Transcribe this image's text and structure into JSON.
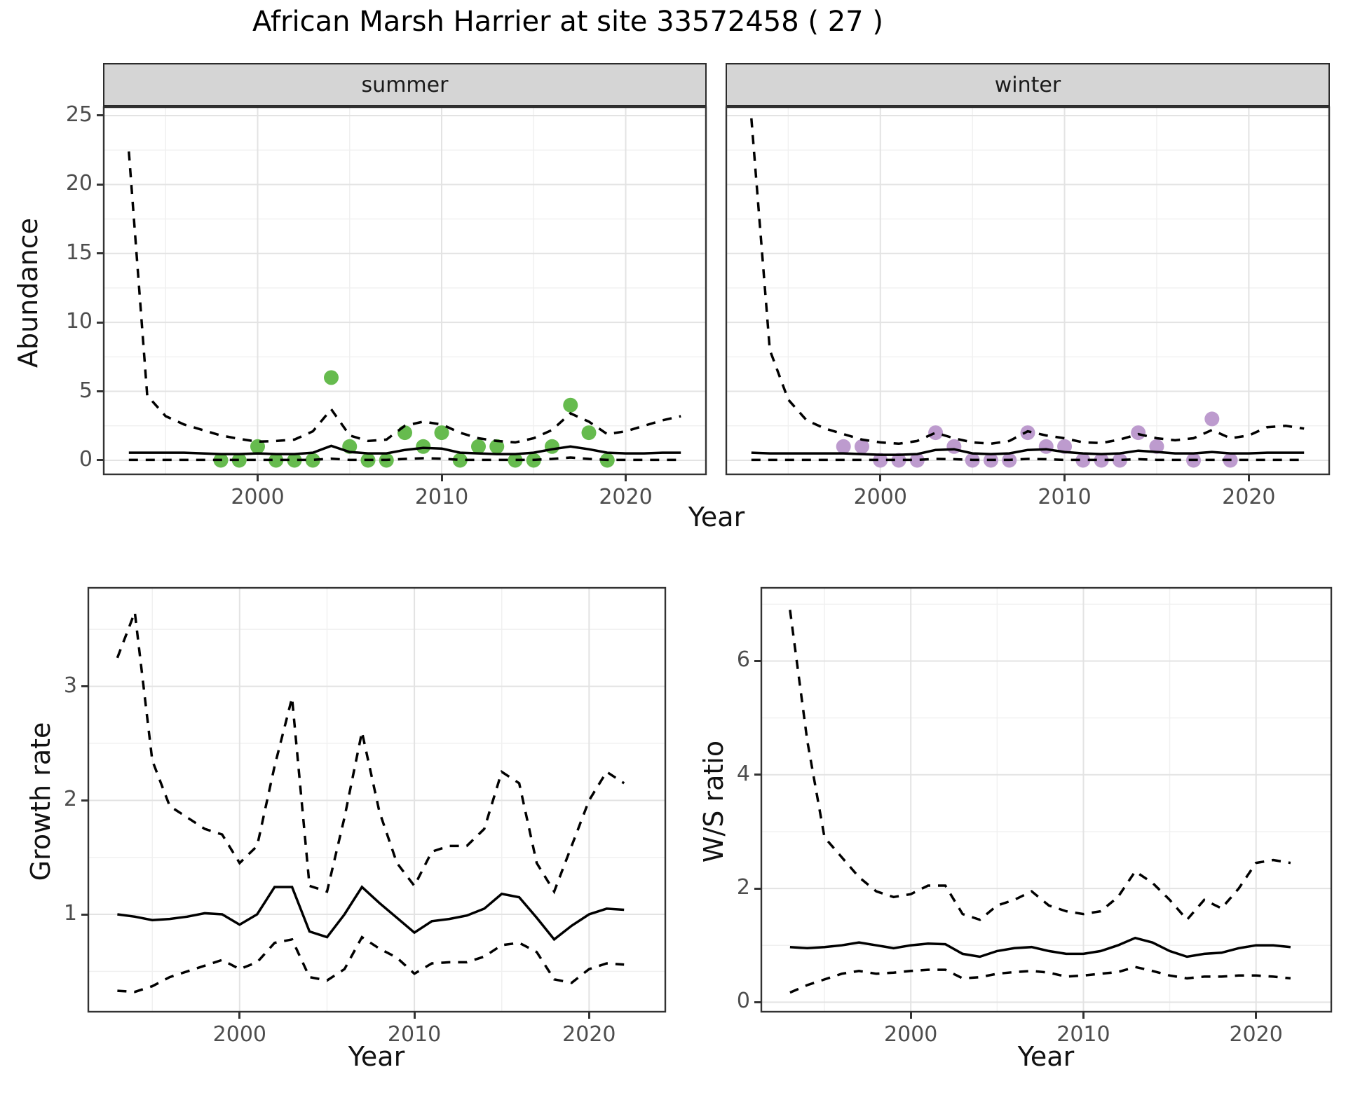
{
  "title": "African Marsh Harrier at site 33572458 ( 27 )",
  "facets": {
    "summer": "summer",
    "winter": "winter"
  },
  "axis_labels": {
    "abundance": "Abundance",
    "year": "Year",
    "growth_rate": "Growth rate",
    "ws_ratio": "W/S ratio"
  },
  "colors": {
    "summer_points": "#66bb4e",
    "winter_points": "#bd9bce",
    "line": "#000000",
    "grid_major": "#e3e3e3",
    "grid_minor": "#f0f0f0",
    "panel_border": "#333333",
    "strip_fill": "#d5d5d5",
    "tick_text": "#4d4d4d"
  },
  "chart_data": [
    {
      "id": "abundance_summer",
      "type": "line",
      "facet": "summer",
      "ylabel": "Abundance",
      "xlabel": "Year",
      "xlim": [
        1991.6,
        2024.4
      ],
      "ylim": [
        -1.07,
        25.66
      ],
      "xticks": [
        2000,
        2010,
        2020
      ],
      "yticks": [
        0,
        5,
        10,
        15,
        20,
        25
      ],
      "y_axis": true,
      "x": [
        1993,
        1994,
        1995,
        1996,
        1997,
        1998,
        1999,
        2000,
        2001,
        2002,
        2003,
        2004,
        2005,
        2006,
        2007,
        2008,
        2009,
        2010,
        2011,
        2012,
        2013,
        2014,
        2015,
        2016,
        2017,
        2018,
        2019,
        2020,
        2021,
        2022,
        2023
      ],
      "series": [
        {
          "name": "upper_ci",
          "style": "dashed",
          "values": [
            22.4,
            4.7,
            3.2,
            2.6,
            2.2,
            1.8,
            1.55,
            1.35,
            1.4,
            1.5,
            2.1,
            3.7,
            1.8,
            1.4,
            1.5,
            2.5,
            2.8,
            2.6,
            2.0,
            1.6,
            1.4,
            1.3,
            1.6,
            2.2,
            3.4,
            2.8,
            1.9,
            2.1,
            2.5,
            2.9,
            3.2
          ]
        },
        {
          "name": "median",
          "style": "solid",
          "values": [
            0.55,
            0.55,
            0.55,
            0.55,
            0.5,
            0.45,
            0.45,
            0.5,
            0.45,
            0.45,
            0.55,
            1.05,
            0.6,
            0.5,
            0.5,
            0.75,
            0.9,
            0.85,
            0.55,
            0.5,
            0.45,
            0.45,
            0.55,
            0.8,
            1.0,
            0.8,
            0.55,
            0.5,
            0.5,
            0.55,
            0.55
          ]
        },
        {
          "name": "lower_ci",
          "style": "dashed",
          "values": [
            0.03,
            0.03,
            0.03,
            0.03,
            0.03,
            0.03,
            0.03,
            0.03,
            0.03,
            0.03,
            0.03,
            0.12,
            0.03,
            0.03,
            0.03,
            0.1,
            0.15,
            0.12,
            0.03,
            0.03,
            0.03,
            0.03,
            0.03,
            0.1,
            0.2,
            0.1,
            0.03,
            0.03,
            0.03,
            0.03,
            0.03
          ]
        }
      ],
      "points": {
        "color_key": "summer_points",
        "x": [
          1998,
          1999,
          2000,
          2001,
          2002,
          2003,
          2004,
          2005,
          2006,
          2007,
          2008,
          2009,
          2010,
          2011,
          2012,
          2013,
          2014,
          2015,
          2016,
          2017,
          2018,
          2019
        ],
        "y": [
          0,
          0,
          1,
          0,
          0,
          0,
          6,
          1,
          0,
          0,
          2,
          1,
          2,
          0,
          1,
          1,
          0,
          0,
          1,
          4,
          2,
          0
        ]
      }
    },
    {
      "id": "abundance_winter",
      "type": "line",
      "facet": "winter",
      "ylabel": "Abundance",
      "xlabel": "Year",
      "xlim": [
        1991.6,
        2024.4
      ],
      "ylim": [
        -1.07,
        25.66
      ],
      "xticks": [
        2000,
        2010,
        2020
      ],
      "yticks": [
        0,
        5,
        10,
        15,
        20,
        25
      ],
      "y_axis": false,
      "x": [
        1993,
        1994,
        1995,
        1996,
        1997,
        1998,
        1999,
        2000,
        2001,
        2002,
        2003,
        2004,
        2005,
        2006,
        2007,
        2008,
        2009,
        2010,
        2011,
        2012,
        2013,
        2014,
        2015,
        2016,
        2017,
        2018,
        2019,
        2020,
        2021,
        2022,
        2023
      ],
      "series": [
        {
          "name": "upper_ci",
          "style": "dashed",
          "values": [
            24.8,
            8.0,
            4.4,
            2.9,
            2.3,
            1.9,
            1.5,
            1.3,
            1.2,
            1.4,
            2.0,
            1.6,
            1.3,
            1.2,
            1.4,
            2.1,
            1.8,
            1.6,
            1.3,
            1.25,
            1.5,
            1.9,
            1.6,
            1.45,
            1.6,
            2.2,
            1.6,
            1.8,
            2.4,
            2.5,
            2.3
          ]
        },
        {
          "name": "median",
          "style": "solid",
          "values": [
            0.55,
            0.5,
            0.5,
            0.5,
            0.5,
            0.5,
            0.45,
            0.4,
            0.4,
            0.45,
            0.75,
            0.8,
            0.5,
            0.45,
            0.5,
            0.75,
            0.8,
            0.6,
            0.5,
            0.45,
            0.5,
            0.7,
            0.6,
            0.5,
            0.5,
            0.6,
            0.5,
            0.5,
            0.55,
            0.55,
            0.55
          ]
        },
        {
          "name": "lower_ci",
          "style": "dashed",
          "values": [
            0.03,
            0.03,
            0.03,
            0.03,
            0.03,
            0.03,
            0.03,
            0.03,
            0.03,
            0.03,
            0.1,
            0.08,
            0.03,
            0.03,
            0.03,
            0.1,
            0.08,
            0.03,
            0.03,
            0.03,
            0.03,
            0.08,
            0.03,
            0.03,
            0.03,
            0.03,
            0.03,
            0.03,
            0.03,
            0.03,
            0.03
          ]
        }
      ],
      "points": {
        "color_key": "winter_points",
        "x": [
          1998,
          1999,
          2000,
          2001,
          2002,
          2003,
          2004,
          2005,
          2006,
          2007,
          2008,
          2009,
          2010,
          2011,
          2012,
          2013,
          2014,
          2015,
          2017,
          2018,
          2019
        ],
        "y": [
          1,
          1,
          0,
          0,
          0,
          2,
          1,
          0,
          0,
          0,
          2,
          1,
          1,
          0,
          0,
          0,
          2,
          1,
          0,
          3,
          0
        ]
      }
    },
    {
      "id": "growth_rate",
      "type": "line",
      "facet": null,
      "ylabel": "Growth rate",
      "xlabel": "Year",
      "xlim": [
        1991.3,
        2024.4
      ],
      "ylim": [
        0.14,
        3.87
      ],
      "xticks": [
        2000,
        2010,
        2020
      ],
      "yticks": [
        1,
        2,
        3
      ],
      "y_axis": true,
      "x": [
        1993,
        1994,
        1995,
        1996,
        1997,
        1998,
        1999,
        2000,
        2001,
        2002,
        2003,
        2004,
        2005,
        2006,
        2007,
        2008,
        2009,
        2010,
        2011,
        2012,
        2013,
        2014,
        2015,
        2016,
        2017,
        2018,
        2019,
        2020,
        2021,
        2022
      ],
      "series": [
        {
          "name": "upper_ci",
          "style": "dashed",
          "values": [
            3.25,
            3.65,
            2.35,
            1.95,
            1.85,
            1.75,
            1.7,
            1.45,
            1.6,
            2.3,
            2.9,
            1.25,
            1.2,
            1.85,
            2.6,
            1.9,
            1.45,
            1.25,
            1.55,
            1.6,
            1.6,
            1.75,
            2.25,
            2.15,
            1.45,
            1.2,
            1.6,
            2.0,
            2.25,
            2.15
          ]
        },
        {
          "name": "median",
          "style": "solid",
          "values": [
            1.0,
            0.98,
            0.95,
            0.96,
            0.98,
            1.01,
            1.0,
            0.91,
            1.0,
            1.24,
            1.24,
            0.85,
            0.8,
            1.0,
            1.24,
            1.1,
            0.97,
            0.84,
            0.94,
            0.96,
            0.99,
            1.05,
            1.18,
            1.15,
            0.97,
            0.78,
            0.9,
            1.0,
            1.05,
            1.04
          ]
        },
        {
          "name": "lower_ci",
          "style": "dashed",
          "values": [
            0.33,
            0.32,
            0.37,
            0.45,
            0.5,
            0.55,
            0.6,
            0.52,
            0.58,
            0.75,
            0.78,
            0.45,
            0.42,
            0.52,
            0.8,
            0.7,
            0.62,
            0.48,
            0.57,
            0.58,
            0.58,
            0.63,
            0.73,
            0.75,
            0.67,
            0.43,
            0.4,
            0.52,
            0.57,
            0.56
          ]
        }
      ],
      "points": null
    },
    {
      "id": "ws_ratio",
      "type": "line",
      "facet": null,
      "ylabel": "W/S ratio",
      "xlabel": "Year",
      "xlim": [
        1991.3,
        2024.4
      ],
      "ylim": [
        -0.18,
        7.3
      ],
      "xticks": [
        2000,
        2010,
        2020
      ],
      "yticks": [
        0,
        2,
        4,
        6
      ],
      "y_axis": true,
      "x": [
        1993,
        1994,
        1995,
        1996,
        1997,
        1998,
        1999,
        2000,
        2001,
        2002,
        2003,
        2004,
        2005,
        2006,
        2007,
        2008,
        2009,
        2010,
        2011,
        2012,
        2013,
        2014,
        2015,
        2016,
        2017,
        2018,
        2019,
        2020,
        2021,
        2022
      ],
      "series": [
        {
          "name": "upper_ci",
          "style": "dashed",
          "values": [
            6.9,
            4.6,
            2.9,
            2.55,
            2.2,
            1.95,
            1.85,
            1.9,
            2.05,
            2.05,
            1.55,
            1.45,
            1.7,
            1.8,
            1.95,
            1.7,
            1.6,
            1.55,
            1.6,
            1.85,
            2.3,
            2.1,
            1.8,
            1.45,
            1.8,
            1.65,
            2.0,
            2.45,
            2.5,
            2.45
          ]
        },
        {
          "name": "median",
          "style": "solid",
          "values": [
            0.97,
            0.95,
            0.97,
            1.0,
            1.05,
            1.0,
            0.95,
            1.0,
            1.03,
            1.02,
            0.85,
            0.8,
            0.9,
            0.95,
            0.97,
            0.9,
            0.85,
            0.85,
            0.9,
            1.0,
            1.13,
            1.05,
            0.9,
            0.8,
            0.85,
            0.87,
            0.95,
            1.0,
            1.0,
            0.97
          ]
        },
        {
          "name": "lower_ci",
          "style": "dashed",
          "values": [
            0.17,
            0.3,
            0.4,
            0.5,
            0.55,
            0.5,
            0.52,
            0.55,
            0.57,
            0.57,
            0.42,
            0.44,
            0.5,
            0.53,
            0.55,
            0.52,
            0.45,
            0.47,
            0.5,
            0.53,
            0.62,
            0.55,
            0.47,
            0.42,
            0.45,
            0.45,
            0.47,
            0.47,
            0.45,
            0.42
          ]
        }
      ],
      "points": null
    }
  ]
}
